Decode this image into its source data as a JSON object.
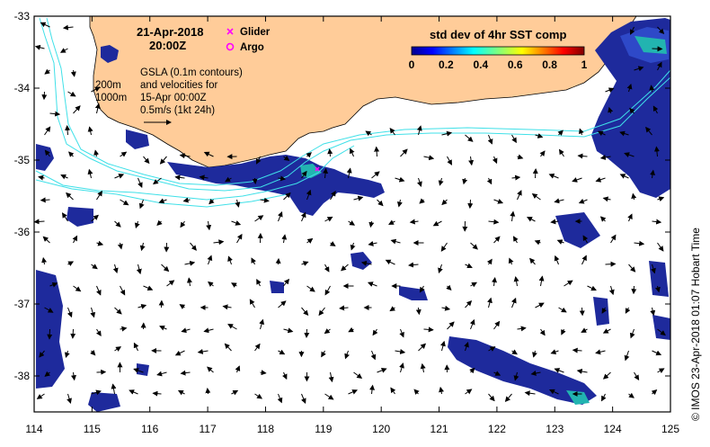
{
  "map": {
    "date": "21-Apr-2018",
    "time": "20:00Z",
    "legend_glider": "Glider",
    "legend_argo": "Argo",
    "colorbar_title": "std dev of 4hr SST comp",
    "colorbar_ticks": [
      "0",
      "0.2",
      "0.4",
      "0.6",
      "0.8",
      "1"
    ],
    "depth_200": "200m",
    "depth_1000": "1000m",
    "gsla_line1": "GSLA (0.1m contours)",
    "gsla_line2": "and velocities for",
    "gsla_line3": "15-Apr 00:00Z",
    "scale_label": "0.5m/s (1kt 24h)",
    "credit": "© IMOS 23-Apr-2018 01:07 Hobart Time",
    "lon_ticks": [
      "114",
      "115",
      "116",
      "117",
      "118",
      "119",
      "120",
      "121",
      "122",
      "123",
      "124",
      "125"
    ],
    "lat_ticks": [
      "-33",
      "-34",
      "-35",
      "-36",
      "-37",
      "-38"
    ],
    "colors": {
      "land": "#FFCC99",
      "data_dark": "#1E2A9C",
      "data_mid": "#2E49C8",
      "data_light": "#22B4B0",
      "contour": "#3FE0E8",
      "glider": "#FF00FF",
      "argo": "#FF00FF"
    },
    "lon_range": [
      114,
      125
    ],
    "lat_range": [
      -38.5,
      -33
    ]
  }
}
